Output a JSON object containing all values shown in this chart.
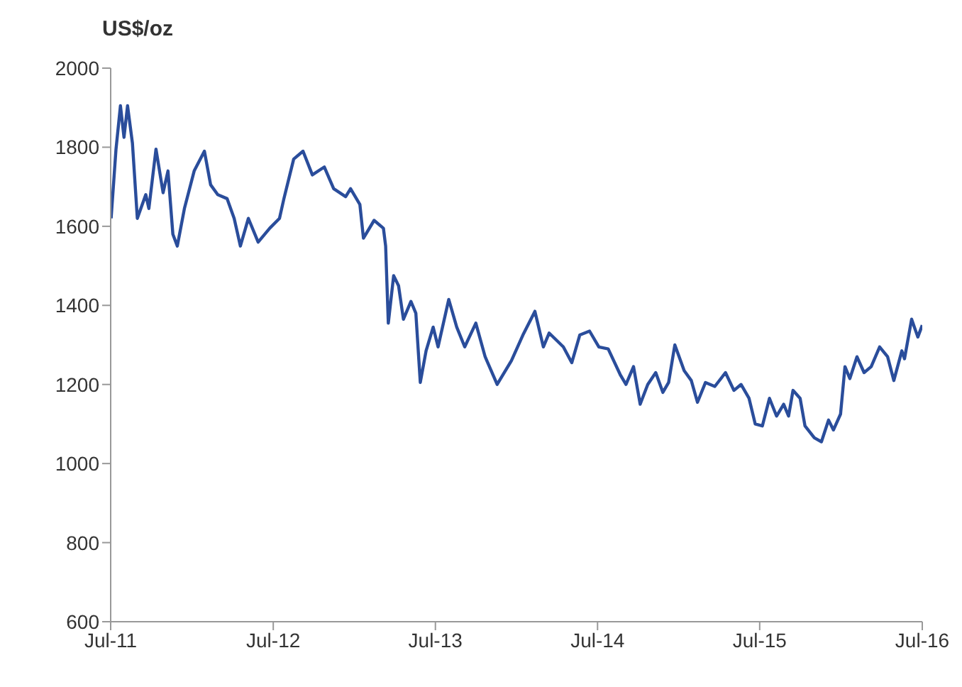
{
  "chart_data": {
    "type": "line",
    "ylabel": "US$/oz",
    "x": [
      "2011-07-02",
      "2011-07-13",
      "2011-07-23",
      "2011-07-31",
      "2011-08-08",
      "2011-08-19",
      "2011-08-30",
      "2011-09-18",
      "2011-09-25",
      "2011-10-11",
      "2011-10-27",
      "2011-11-07",
      "2011-11-18",
      "2011-11-28",
      "2011-12-14",
      "2012-01-05",
      "2012-01-28",
      "2012-02-11",
      "2012-02-27",
      "2012-03-19",
      "2012-04-04",
      "2012-04-18",
      "2012-05-06",
      "2012-05-28",
      "2012-06-23",
      "2012-07-15",
      "2012-07-25",
      "2012-08-16",
      "2012-09-06",
      "2012-09-27",
      "2012-10-24",
      "2012-11-14",
      "2012-12-11",
      "2012-12-22",
      "2013-01-12",
      "2013-01-20",
      "2013-02-13",
      "2013-03-06",
      "2013-03-11",
      "2013-03-17",
      "2013-03-29",
      "2013-04-09",
      "2013-04-20",
      "2013-05-07",
      "2013-05-18",
      "2013-05-28",
      "2013-06-10",
      "2013-06-26",
      "2013-07-07",
      "2013-07-31",
      "2013-08-18",
      "2013-09-05",
      "2013-09-30",
      "2013-10-21",
      "2013-11-17",
      "2013-12-19",
      "2014-01-14",
      "2014-02-10",
      "2014-03-01",
      "2014-03-14",
      "2014-04-15",
      "2014-05-04",
      "2014-05-22",
      "2014-06-13",
      "2014-07-04",
      "2014-07-25",
      "2014-08-21",
      "2014-09-03",
      "2014-09-20",
      "2014-10-05",
      "2014-10-22",
      "2014-11-09",
      "2014-11-25",
      "2014-12-08",
      "2014-12-22",
      "2015-01-12",
      "2015-01-28",
      "2015-02-11",
      "2015-03-01",
      "2015-03-22",
      "2015-04-15",
      "2015-05-04",
      "2015-05-20",
      "2015-06-07",
      "2015-06-21",
      "2015-07-07",
      "2015-07-23",
      "2015-08-08",
      "2015-08-24",
      "2015-09-04",
      "2015-09-14",
      "2015-09-30",
      "2015-10-11",
      "2015-11-01",
      "2015-11-17",
      "2015-12-03",
      "2015-12-14",
      "2015-12-30",
      "2016-01-09",
      "2016-01-20",
      "2016-02-05",
      "2016-02-21",
      "2016-03-08",
      "2016-03-27",
      "2016-04-14",
      "2016-04-28",
      "2016-05-16",
      "2016-05-22",
      "2016-06-07",
      "2016-06-21",
      "2016-07-01"
    ],
    "series": [
      {
        "color": "#2a4d9b",
        "values": [
          1620,
          1795,
          1905,
          1825,
          1905,
          1810,
          1620,
          1680,
          1645,
          1795,
          1685,
          1740,
          1580,
          1550,
          1645,
          1740,
          1790,
          1705,
          1680,
          1670,
          1620,
          1550,
          1620,
          1560,
          1595,
          1620,
          1670,
          1770,
          1790,
          1730,
          1750,
          1695,
          1675,
          1695,
          1655,
          1570,
          1615,
          1595,
          1550,
          1355,
          1475,
          1450,
          1365,
          1410,
          1380,
          1205,
          1285,
          1345,
          1295,
          1415,
          1345,
          1295,
          1355,
          1270,
          1200,
          1260,
          1325,
          1385,
          1295,
          1330,
          1295,
          1255,
          1325,
          1335,
          1295,
          1290,
          1225,
          1200,
          1245,
          1150,
          1200,
          1230,
          1180,
          1205,
          1300,
          1235,
          1210,
          1155,
          1205,
          1195,
          1230,
          1185,
          1200,
          1165,
          1100,
          1095,
          1165,
          1120,
          1150,
          1120,
          1185,
          1165,
          1095,
          1065,
          1055,
          1110,
          1085,
          1125,
          1245,
          1215,
          1270,
          1230,
          1245,
          1295,
          1270,
          1210,
          1285,
          1265,
          1365,
          1320,
          1350
        ]
      }
    ],
    "xlim": [
      "2011-07-01",
      "2016-07-01"
    ],
    "xticks": [
      {
        "value": "2011-07-01",
        "label": "Jul-11"
      },
      {
        "value": "2012-07-01",
        "label": "Jul-12"
      },
      {
        "value": "2013-07-01",
        "label": "Jul-13"
      },
      {
        "value": "2014-07-01",
        "label": "Jul-14"
      },
      {
        "value": "2015-07-01",
        "label": "Jul-15"
      },
      {
        "value": "2016-07-01",
        "label": "Jul-16"
      }
    ],
    "ylim": [
      600,
      2000
    ],
    "yticks": [
      600,
      800,
      1000,
      1200,
      1400,
      1600,
      1800,
      2000
    ],
    "grid": false,
    "legend": false,
    "marker": "none",
    "line_style": "solid"
  }
}
